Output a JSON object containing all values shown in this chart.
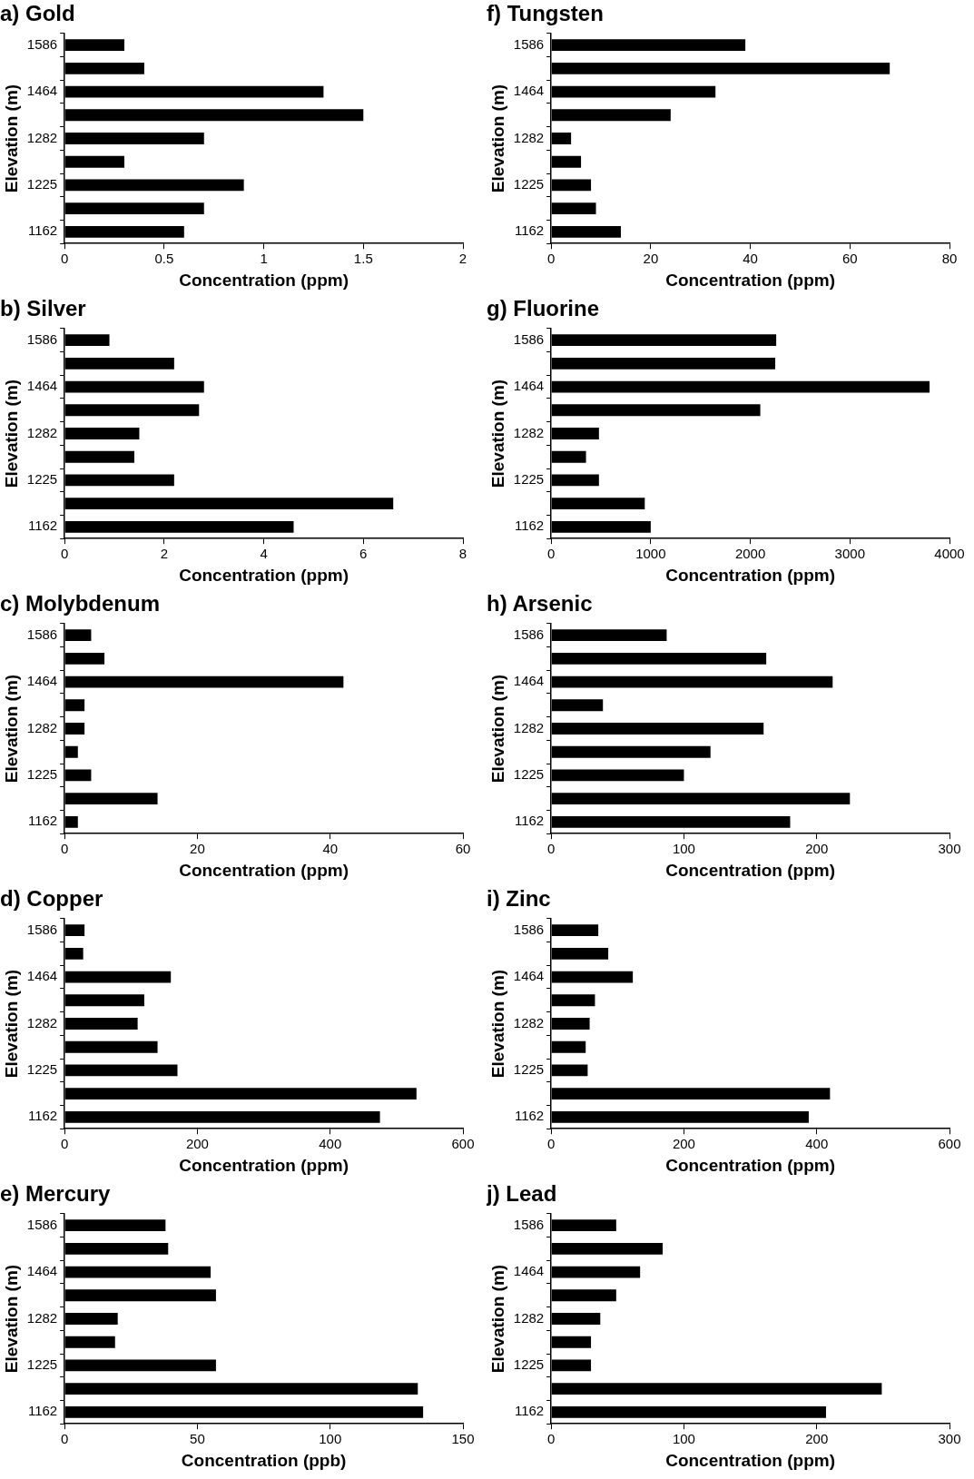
{
  "chart_data": [
    {
      "type": "bar",
      "orientation": "horizontal",
      "title": "a) Gold",
      "xlabel": "Concentration (ppm)",
      "ylabel": "Elevation (m)",
      "categories": [
        "1586",
        null,
        "1464",
        null,
        "1282",
        null,
        "1225",
        null,
        "1162"
      ],
      "values": [
        0.3,
        0.4,
        1.3,
        1.5,
        0.7,
        0.3,
        0.9,
        0.7,
        0.6
      ],
      "color": "#000000",
      "xlim": [
        0,
        2
      ],
      "xticks": [
        0,
        0.5,
        1,
        1.5,
        2
      ]
    },
    {
      "type": "bar",
      "orientation": "horizontal",
      "title": "f) Tungsten",
      "xlabel": "Concentration (ppm)",
      "ylabel": "Elevation (m)",
      "categories": [
        "1586",
        null,
        "1464",
        null,
        "1282",
        null,
        "1225",
        null,
        "1162"
      ],
      "values": [
        39,
        68,
        33,
        24,
        4,
        6,
        8,
        9,
        14
      ],
      "color": "#000000",
      "xlim": [
        0,
        80
      ],
      "xticks": [
        0,
        20,
        40,
        60,
        80
      ]
    },
    {
      "type": "bar",
      "orientation": "horizontal",
      "title": "b) Silver",
      "xlabel": "Concentration (ppm)",
      "ylabel": "Elevation (m)",
      "categories": [
        "1586",
        null,
        "1464",
        null,
        "1282",
        null,
        "1225",
        null,
        "1162"
      ],
      "values": [
        0.9,
        2.2,
        2.8,
        2.7,
        1.5,
        1.4,
        2.2,
        6.6,
        4.6
      ],
      "color": "#000000",
      "xlim": [
        0,
        8
      ],
      "xticks": [
        0,
        2,
        4,
        6,
        8
      ]
    },
    {
      "type": "bar",
      "orientation": "horizontal",
      "title": "g) Fluorine",
      "xlabel": "Concentration (ppm)",
      "ylabel": "Elevation (m)",
      "categories": [
        "1586",
        null,
        "1464",
        null,
        "1282",
        null,
        "1225",
        null,
        "1162"
      ],
      "values": [
        2260,
        2250,
        3800,
        2100,
        480,
        350,
        480,
        940,
        1000
      ],
      "color": "#000000",
      "xlim": [
        0,
        4000
      ],
      "xticks": [
        0,
        1000,
        2000,
        3000,
        4000
      ]
    },
    {
      "type": "bar",
      "orientation": "horizontal",
      "title": "c) Molybdenum",
      "xlabel": "Concentration (ppm)",
      "ylabel": "Elevation (m)",
      "categories": [
        "1586",
        null,
        "1464",
        null,
        "1282",
        null,
        "1225",
        null,
        "1162"
      ],
      "values": [
        4,
        6,
        42,
        3,
        3,
        2,
        4,
        14,
        2
      ],
      "color": "#000000",
      "xlim": [
        0,
        60
      ],
      "xticks": [
        0,
        20,
        40,
        60
      ]
    },
    {
      "type": "bar",
      "orientation": "horizontal",
      "title": "h) Arsenic",
      "xlabel": "Concentration (ppm)",
      "ylabel": "Elevation (m)",
      "categories": [
        "1586",
        null,
        "1464",
        null,
        "1282",
        null,
        "1225",
        null,
        "1162"
      ],
      "values": [
        87,
        162,
        212,
        39,
        160,
        120,
        100,
        225,
        180
      ],
      "color": "#000000",
      "xlim": [
        0,
        300
      ],
      "xticks": [
        0,
        100,
        200,
        300
      ]
    },
    {
      "type": "bar",
      "orientation": "horizontal",
      "title": "d) Copper",
      "xlabel": "Concentration (ppm)",
      "ylabel": "Elevation (m)",
      "categories": [
        "1586",
        null,
        "1464",
        null,
        "1282",
        null,
        "1225",
        null,
        "1162"
      ],
      "values": [
        30,
        28,
        160,
        120,
        110,
        140,
        170,
        530,
        475
      ],
      "color": "#000000",
      "xlim": [
        0,
        600
      ],
      "xticks": [
        0,
        200,
        400,
        600
      ]
    },
    {
      "type": "bar",
      "orientation": "horizontal",
      "title": "i) Zinc",
      "xlabel": "Concentration (ppm)",
      "ylabel": "Elevation (m)",
      "categories": [
        "1586",
        null,
        "1464",
        null,
        "1282",
        null,
        "1225",
        null,
        "1162"
      ],
      "values": [
        71,
        86,
        123,
        66,
        58,
        52,
        55,
        420,
        388
      ],
      "color": "#000000",
      "xlim": [
        0,
        600
      ],
      "xticks": [
        0,
        200,
        400,
        600
      ]
    },
    {
      "type": "bar",
      "orientation": "horizontal",
      "title": "e) Mercury",
      "xlabel": "Concentration (ppb)",
      "ylabel": "Elevation (m)",
      "categories": [
        "1586",
        null,
        "1464",
        null,
        "1282",
        null,
        "1225",
        null,
        "1162"
      ],
      "values": [
        38,
        39,
        55,
        57,
        20,
        19,
        57,
        133,
        135
      ],
      "color": "#000000",
      "xlim": [
        0,
        150
      ],
      "xticks": [
        0,
        50,
        100,
        150
      ]
    },
    {
      "type": "bar",
      "orientation": "horizontal",
      "title": "j) Lead",
      "xlabel": "Concentration (ppm)",
      "ylabel": "Elevation (m)",
      "categories": [
        "1586",
        null,
        "1464",
        null,
        "1282",
        null,
        "1225",
        null,
        "1162"
      ],
      "values": [
        49,
        84,
        67,
        49,
        37,
        30,
        30,
        249,
        207
      ],
      "color": "#000000",
      "xlim": [
        0,
        300
      ],
      "xticks": [
        0,
        100,
        200,
        300
      ]
    }
  ]
}
